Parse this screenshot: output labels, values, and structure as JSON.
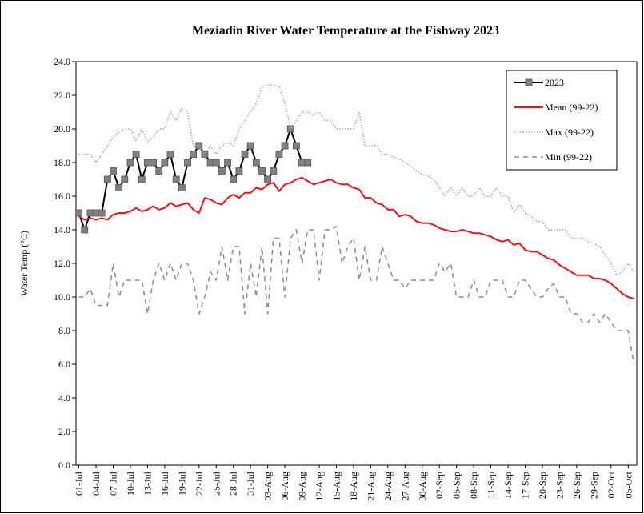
{
  "chart_data": {
    "type": "line",
    "title": "Meziadin River Water Temperature at the Fishway 2023",
    "ylabel": "Water Temp (°C)",
    "categories": [
      "01-Jul",
      null,
      null,
      "04-Jul",
      null,
      null,
      "07-Jul",
      null,
      null,
      "10-Jul",
      null,
      null,
      "13-Jul",
      null,
      null,
      "16-Jul",
      null,
      null,
      "19-Jul",
      null,
      null,
      "22-Jul",
      null,
      null,
      "25-Jul",
      null,
      null,
      "28-Jul",
      null,
      null,
      "31-Jul",
      null,
      null,
      "03-Aug",
      null,
      null,
      "06-Aug",
      null,
      null,
      "09-Aug",
      null,
      null,
      "12-Aug",
      null,
      null,
      "15-Aug",
      null,
      null,
      "18-Aug",
      null,
      null,
      "21-Aug",
      null,
      null,
      "24-Aug",
      null,
      null,
      "27-Aug",
      null,
      null,
      "30-Aug",
      null,
      null,
      "02-Sep",
      null,
      null,
      "05-Sep",
      null,
      null,
      "08-Sep",
      null,
      null,
      "11-Sep",
      null,
      null,
      "14-Sep",
      null,
      null,
      "17-Sep",
      null,
      null,
      "20-Sep",
      null,
      null,
      "23-Sep",
      null,
      null,
      "26-Sep",
      null,
      null,
      "29-Sep",
      null,
      null,
      "02-Oct",
      null,
      null,
      "05-Oct",
      null
    ],
    "series": [
      {
        "name": "2023",
        "color": "#000000",
        "marker_color": "#808080",
        "style": "solid-marker",
        "values": [
          15,
          14,
          15,
          15,
          15,
          17,
          17.5,
          16.5,
          17,
          18,
          18.5,
          17,
          18,
          18,
          17.5,
          18,
          18.5,
          17,
          16.5,
          18,
          18.5,
          19,
          18.5,
          18,
          18,
          17.5,
          18,
          17,
          17.5,
          18.5,
          19,
          18,
          17.5,
          17,
          17.5,
          18.5,
          19,
          20,
          19,
          18,
          18,
          null,
          null,
          null,
          null,
          null,
          null,
          null,
          null,
          null,
          null,
          null,
          null,
          null,
          null,
          null,
          null,
          null,
          null,
          null,
          null,
          null,
          null,
          null,
          null,
          null,
          null,
          null,
          null,
          null,
          null,
          null,
          null,
          null,
          null,
          null,
          null,
          null,
          null,
          null,
          null,
          null,
          null,
          null,
          null,
          null,
          null,
          null,
          null,
          null,
          null,
          null,
          null,
          null,
          null,
          null,
          null,
          null
        ]
      },
      {
        "name": "Mean (99-22)",
        "color": "#e8141b",
        "style": "solid",
        "values": [
          14.8,
          14.6,
          14.7,
          14.6,
          14.7,
          14.6,
          14.9,
          15.0,
          15.0,
          15.1,
          15.3,
          15.1,
          15.2,
          15.4,
          15.2,
          15.3,
          15.6,
          15.4,
          15.5,
          15.6,
          15.2,
          15.0,
          15.9,
          15.8,
          15.6,
          15.5,
          15.9,
          16.1,
          15.9,
          16.2,
          16.2,
          16.5,
          16.4,
          16.7,
          16.8,
          16.3,
          16.7,
          16.8,
          17.0,
          17.1,
          16.9,
          16.7,
          16.8,
          16.9,
          17.0,
          16.8,
          16.7,
          16.7,
          16.5,
          16.4,
          15.9,
          15.9,
          15.6,
          15.5,
          15.2,
          15.2,
          14.8,
          14.9,
          14.8,
          14.5,
          14.4,
          14.4,
          14.3,
          14.1,
          14.0,
          13.9,
          13.9,
          14.0,
          13.9,
          13.8,
          13.8,
          13.7,
          13.6,
          13.4,
          13.3,
          13.4,
          13.1,
          13.2,
          12.8,
          12.7,
          12.7,
          12.5,
          12.3,
          12.2,
          11.9,
          11.7,
          11.5,
          11.3,
          11.3,
          11.3,
          11.1,
          11.1,
          11.0,
          10.8,
          10.5,
          10.2,
          10.0,
          9.9
        ]
      },
      {
        "name": "Max (99-22)",
        "color": "#a6a6a6",
        "style": "dotted",
        "values": [
          18.5,
          18.5,
          18.5,
          18.0,
          18.5,
          19.0,
          19.5,
          19.8,
          20.0,
          20.0,
          19.3,
          20.0,
          19.2,
          19.5,
          20.0,
          20.0,
          21.0,
          20.5,
          21.2,
          21.0,
          19.0,
          19.0,
          18.5,
          19.0,
          18.5,
          19.0,
          19.2,
          19.0,
          20.0,
          20.5,
          21.0,
          21.5,
          22.5,
          22.6,
          22.6,
          22.5,
          21.5,
          20.0,
          20.5,
          21.0,
          21.0,
          20.8,
          21.0,
          20.5,
          20.5,
          20.0,
          20.0,
          20.0,
          20.0,
          21.0,
          19.0,
          19.0,
          19.0,
          18.5,
          18.5,
          18.3,
          18.2,
          18.0,
          17.8,
          17.5,
          17.3,
          17.2,
          17.0,
          16.5,
          16.0,
          16.5,
          16.0,
          16.5,
          16.0,
          16.0,
          16.5,
          16.0,
          16.0,
          16.5,
          16.0,
          16.0,
          15.0,
          15.5,
          15.0,
          14.8,
          14.5,
          14.5,
          14.0,
          14.0,
          14.0,
          14.0,
          13.5,
          13.5,
          13.5,
          13.3,
          13.2,
          13.0,
          12.5,
          12.0,
          11.3,
          11.5,
          12.0,
          11.5
        ]
      },
      {
        "name": "Min (99-22)",
        "color": "#8c8c8c",
        "style": "dashed",
        "values": [
          10.0,
          10.0,
          10.5,
          9.5,
          9.5,
          9.5,
          12.0,
          10.0,
          11.0,
          11.0,
          11.0,
          11.0,
          9.0,
          11.0,
          12.0,
          11.0,
          12.0,
          11.0,
          12.0,
          12.0,
          11.0,
          9.0,
          10.0,
          11.5,
          11.0,
          13.0,
          11.0,
          13.0,
          13.0,
          9.0,
          12.0,
          10.0,
          13.0,
          9.0,
          13.5,
          13.5,
          10.0,
          13.5,
          14.0,
          12.0,
          14.0,
          14.0,
          11.0,
          14.0,
          14.0,
          14.2,
          12.0,
          13.0,
          13.5,
          11.0,
          13.0,
          11.0,
          11.0,
          13.0,
          12.0,
          11.0,
          11.0,
          10.5,
          11.0,
          11.0,
          11.0,
          11.0,
          11.0,
          12.0,
          11.5,
          12.0,
          10.0,
          10.0,
          10.0,
          11.0,
          10.0,
          10.0,
          11.0,
          11.0,
          11.0,
          10.0,
          10.0,
          11.0,
          11.0,
          10.5,
          10.0,
          10.0,
          10.5,
          10.8,
          10.0,
          10.0,
          9.0,
          9.0,
          8.5,
          8.5,
          9.0,
          8.5,
          9.0,
          8.5,
          8.0,
          8.0,
          8.0,
          6.0
        ]
      }
    ],
    "ylim": [
      0,
      24
    ],
    "yticks": [
      {
        "value": 0,
        "label": "0.0"
      },
      {
        "value": 2,
        "label": "2.0"
      },
      {
        "value": 4,
        "label": "4.0"
      },
      {
        "value": 6,
        "label": "6.0"
      },
      {
        "value": 8,
        "label": "8.0"
      },
      {
        "value": 10,
        "label": "10.0"
      },
      {
        "value": 12,
        "label": "12.0"
      },
      {
        "value": 14,
        "label": "14.0"
      },
      {
        "value": 16,
        "label": "16.0"
      },
      {
        "value": 18,
        "label": "18.0"
      },
      {
        "value": 20,
        "label": "20.0"
      },
      {
        "value": 22,
        "label": "22.0"
      },
      {
        "value": 24,
        "label": "24.0"
      }
    ],
    "grid": false,
    "legend": "top-right"
  }
}
